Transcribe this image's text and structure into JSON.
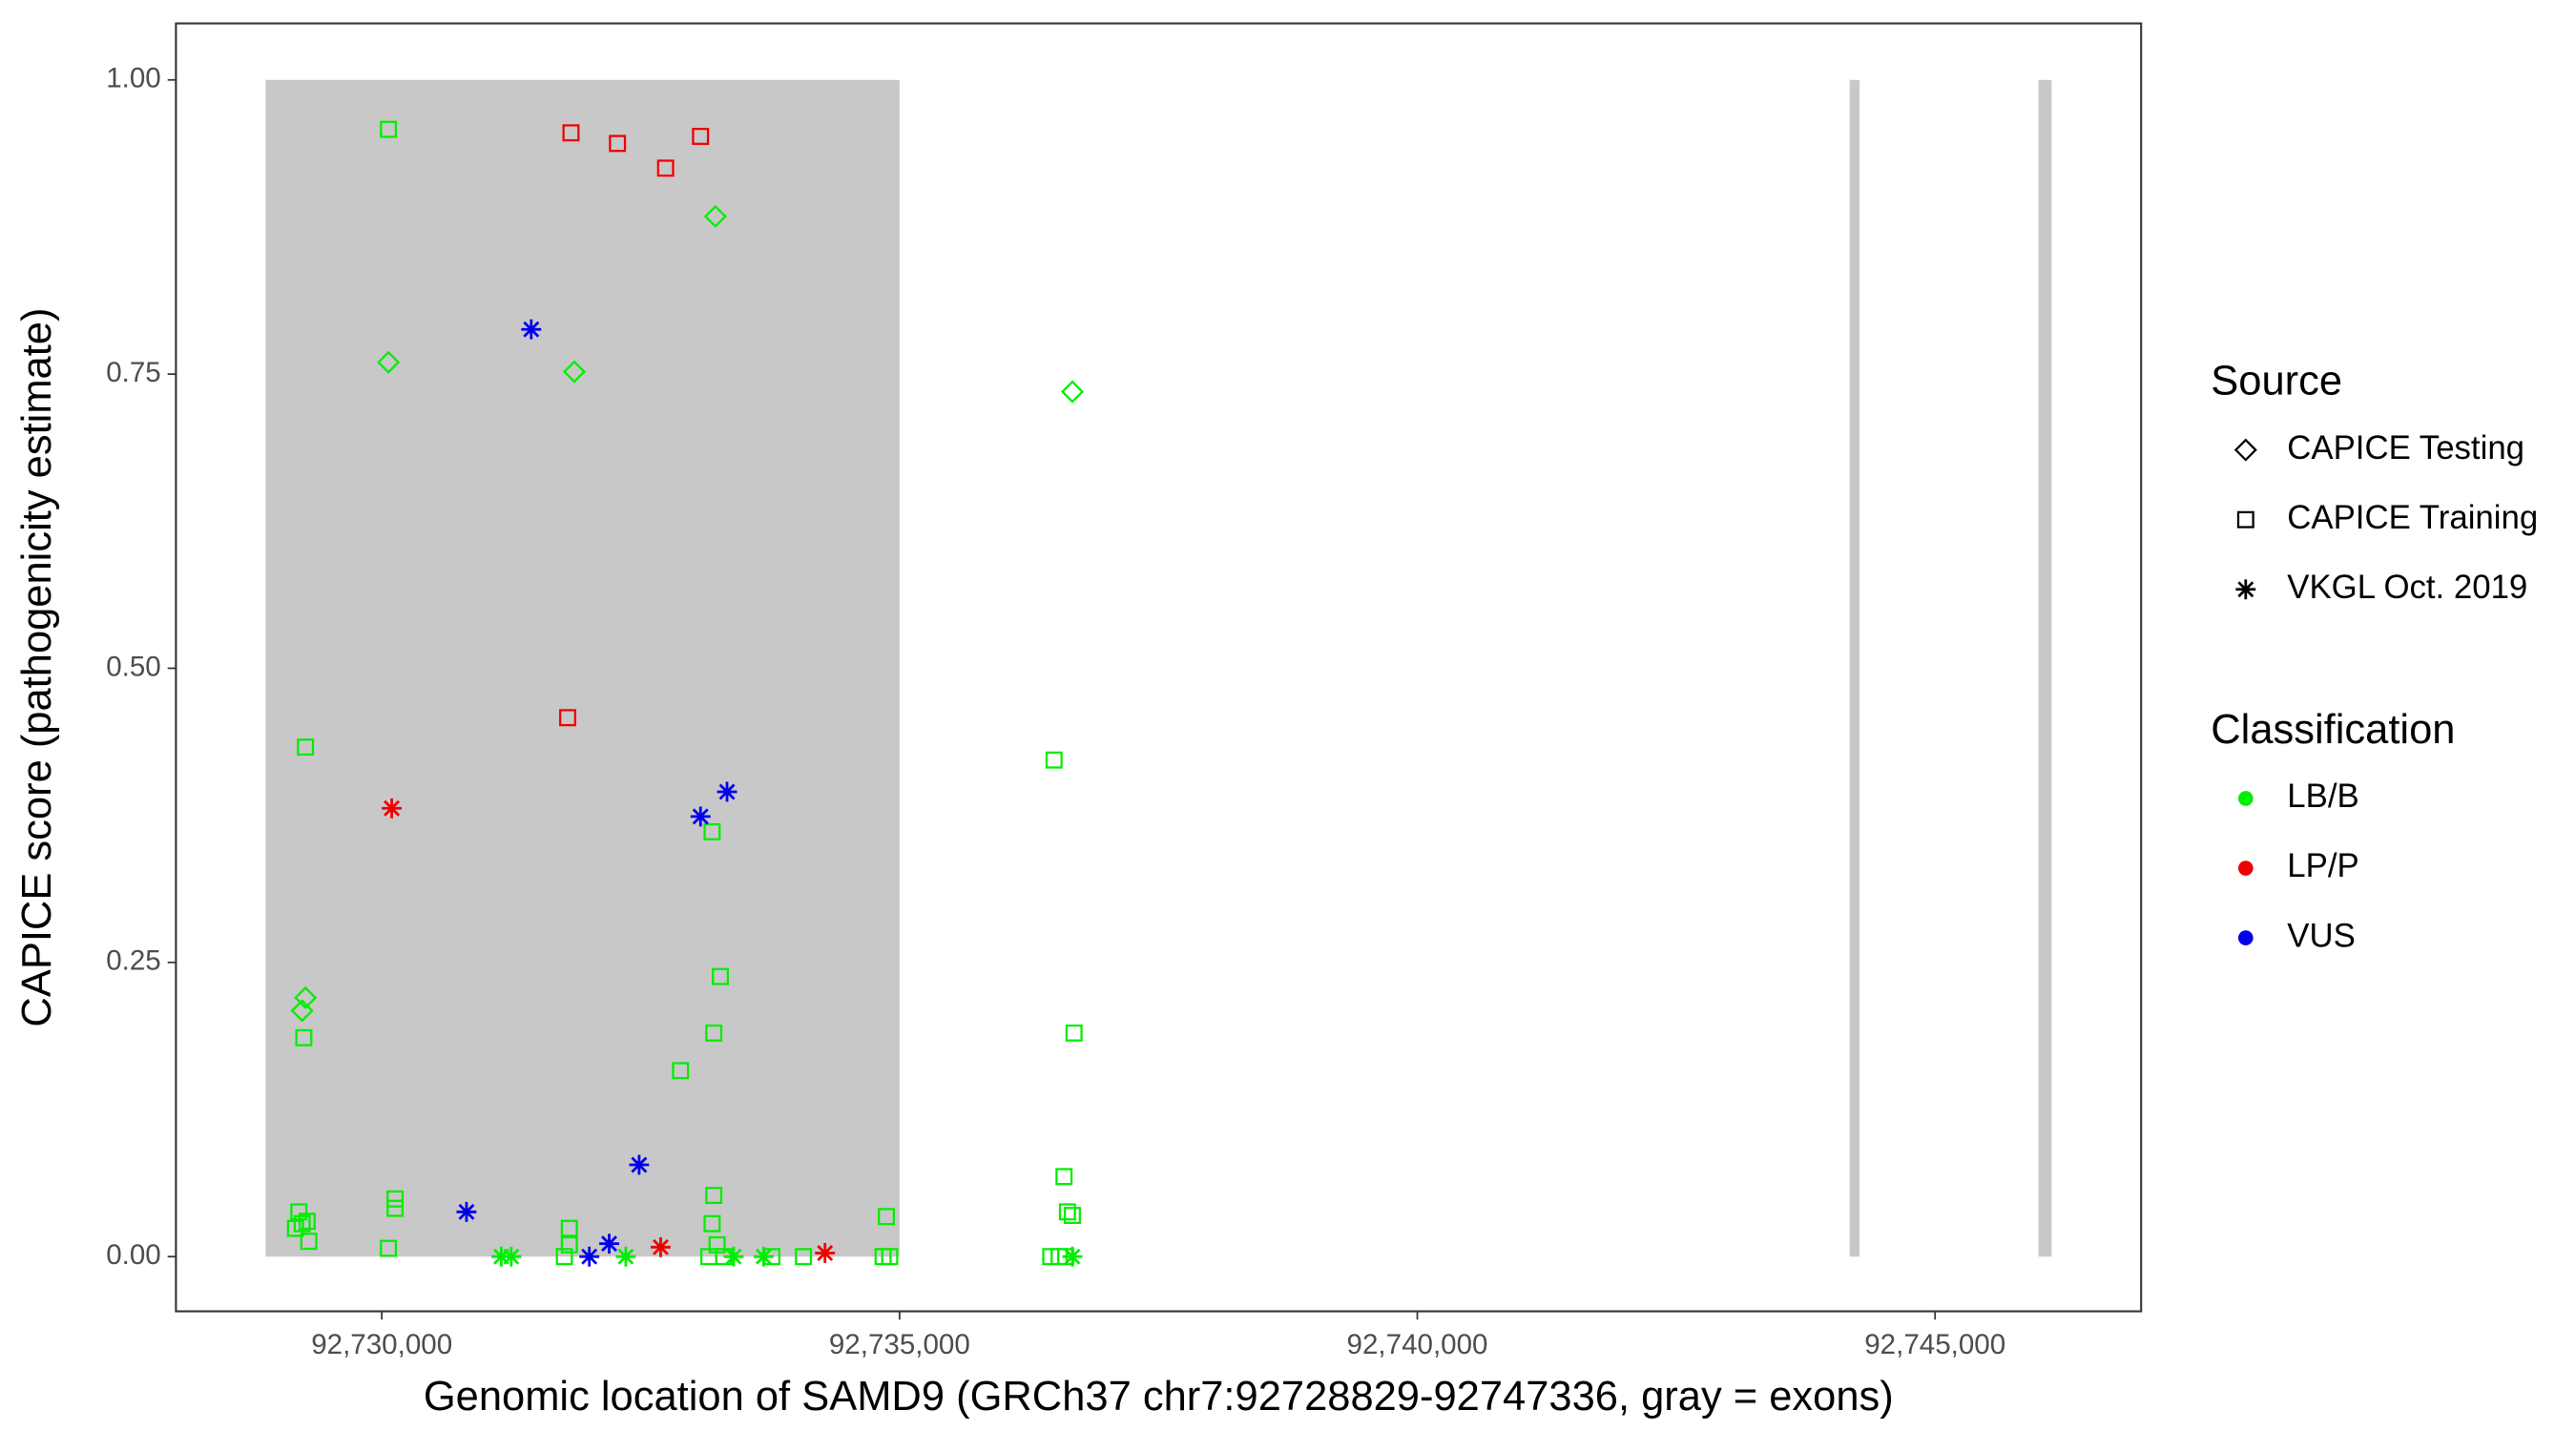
{
  "chart_data": {
    "type": "scatter",
    "x_label": "Genomic location of SAMD9 (GRCh37 chr7:92728829-92747336, gray = exons)",
    "y_label": "CAPICE score (pathogenicity estimate)",
    "xlim": [
      92728012,
      92746990
    ],
    "ylim": [
      -0.0465,
      1.048
    ],
    "xticks": [
      {
        "value": 92730000,
        "label": "92,730,000"
      },
      {
        "value": 92735000,
        "label": "92,735,000"
      },
      {
        "value": 92740000,
        "label": "92,740,000"
      },
      {
        "value": 92745000,
        "label": "92,745,000"
      }
    ],
    "yticks": [
      {
        "value": 0,
        "label": "0.00"
      },
      {
        "value": 0.25,
        "label": "0.25"
      },
      {
        "value": 0.5,
        "label": "0.50"
      },
      {
        "value": 0.75,
        "label": "0.75"
      },
      {
        "value": 1,
        "label": "1.00"
      }
    ],
    "exon_color": "#c8c8c8",
    "exons": [
      [
        92728878,
        92735000
      ],
      [
        92744176,
        92744270
      ],
      [
        92745998,
        92746126
      ]
    ],
    "source_legend": {
      "title": "Source",
      "items": [
        "CAPICE Testing",
        "CAPICE Training",
        "VKGL Oct. 2019"
      ]
    },
    "classification_legend": {
      "title": "Classification",
      "items": [
        {
          "name": "LB/B",
          "color": "#00ee00"
        },
        {
          "name": "LP/P",
          "color": "#ee0000"
        },
        {
          "name": "VUS",
          "color": "#0000ee"
        }
      ]
    },
    "series": [
      {
        "source": "CAPICE Training",
        "classification": "LB/B",
        "x": [
          92730064,
          92729263,
          92729247,
          92729199,
          92729166,
          92729231,
          92729279,
          92729295,
          92730128,
          92730128,
          92730064,
          92731811,
          92731811,
          92731763,
          92732885,
          92733270,
          92733206,
          92733190,
          92733206,
          92733190,
          92733238,
          92733158,
          92733302,
          92733767,
          92734072,
          92734873,
          92734841,
          92734905,
          92736492,
          92736588,
          92736621,
          92736669,
          92736685,
          92736460,
          92736541,
          92736605
        ],
        "y": [
          0.958,
          0.433,
          0.186,
          0.038,
          0.024,
          0.028,
          0.03,
          0.013,
          0.049,
          0.041,
          0.007,
          0.024,
          0.01,
          0,
          0.158,
          0.238,
          0.19,
          0.361,
          0.052,
          0.028,
          0.01,
          0,
          0,
          0,
          0,
          0.034,
          0,
          0,
          0.422,
          0.068,
          0.038,
          0.035,
          0.19,
          0,
          0,
          0
        ]
      },
      {
        "source": "CAPICE Training",
        "classification": "LP/P",
        "x": [
          92731827,
          92732276,
          92732741,
          92733078,
          92731795
        ],
        "y": [
          0.955,
          0.946,
          0.925,
          0.952,
          0.458
        ]
      },
      {
        "source": "CAPICE Testing",
        "classification": "LB/B",
        "x": [
          92730064,
          92731859,
          92733222,
          92736669,
          92729263,
          92729231
        ],
        "y": [
          0.76,
          0.752,
          0.884,
          0.735,
          0.22,
          0.209
        ]
      },
      {
        "source": "VKGL Oct. 2019",
        "classification": "LB/B",
        "x": [
          92731154,
          92731250,
          92732356,
          92733398,
          92733687,
          92736669
        ],
        "y": [
          0,
          0,
          0,
          0,
          0,
          0
        ]
      },
      {
        "source": "VKGL Oct. 2019",
        "classification": "LP/P",
        "x": [
          92730096,
          92732693,
          92734280
        ],
        "y": [
          0.381,
          0.008,
          0.003
        ]
      },
      {
        "source": "VKGL Oct. 2019",
        "classification": "VUS",
        "x": [
          92731443,
          92730818,
          92732485,
          92732196,
          92732004,
          92733078,
          92733334
        ],
        "y": [
          0.788,
          0.038,
          0.078,
          0.011,
          0,
          0.374,
          0.395
        ]
      }
    ]
  }
}
